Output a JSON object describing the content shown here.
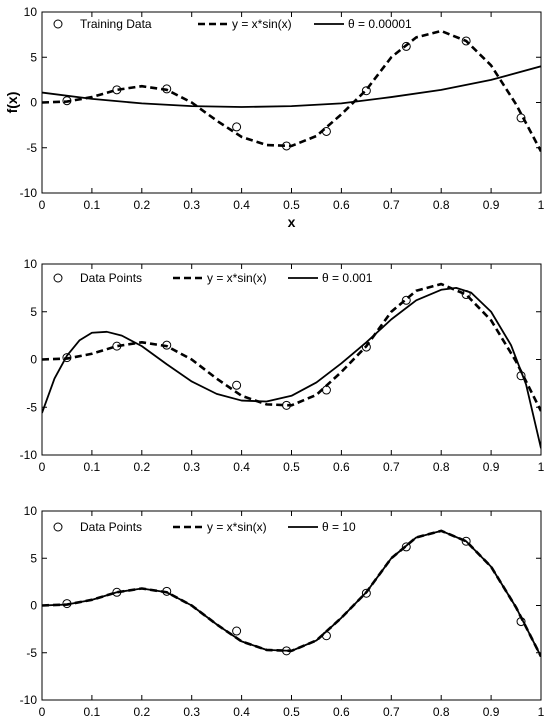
{
  "chart_data": [
    {
      "type": "line",
      "title": "",
      "xlabel": "x",
      "ylabel": "f(x)",
      "xlim": [
        0,
        1
      ],
      "ylim": [
        -10,
        10
      ],
      "xticks": [
        "0",
        "0.1",
        "0.2",
        "0.3",
        "0.4",
        "0.5",
        "0.6",
        "0.7",
        "0.8",
        "0.9",
        "1"
      ],
      "yticks": [
        "-10",
        "-5",
        "0",
        "5",
        "10"
      ],
      "legend_position": "top-left",
      "series": [
        {
          "name": "Training Data",
          "style": "markers",
          "x": [
            0.05,
            0.15,
            0.25,
            0.39,
            0.49,
            0.57,
            0.65,
            0.73,
            0.85,
            0.96
          ],
          "y": [
            0.2,
            1.4,
            1.5,
            -2.7,
            -4.8,
            -3.2,
            1.3,
            6.2,
            6.8,
            -1.7
          ]
        },
        {
          "name": "y = x*sin(x)",
          "style": "dashed",
          "x": [
            0,
            0.05,
            0.1,
            0.15,
            0.2,
            0.25,
            0.3,
            0.35,
            0.4,
            0.45,
            0.5,
            0.55,
            0.6,
            0.65,
            0.7,
            0.75,
            0.8,
            0.85,
            0.9,
            0.95,
            1
          ],
          "y": [
            0,
            0.1,
            0.6,
            1.4,
            1.8,
            1.4,
            0,
            -2.0,
            -3.8,
            -4.7,
            -4.8,
            -3.7,
            -1.3,
            1.4,
            5.0,
            7.2,
            7.9,
            6.8,
            4.1,
            -0.2,
            -5.4
          ]
        },
        {
          "name": "θ = 0.00001",
          "style": "solid",
          "x": [
            0,
            0.1,
            0.2,
            0.3,
            0.4,
            0.5,
            0.6,
            0.7,
            0.8,
            0.9,
            1
          ],
          "y": [
            1.1,
            0.4,
            -0.1,
            -0.4,
            -0.5,
            -0.4,
            -0.1,
            0.6,
            1.4,
            2.5,
            4.0
          ]
        }
      ]
    },
    {
      "type": "line",
      "title": "",
      "xlabel": "",
      "ylabel": "",
      "xlim": [
        0,
        1
      ],
      "ylim": [
        -10,
        10
      ],
      "xticks": [
        "0",
        "0.1",
        "0.2",
        "0.3",
        "0.4",
        "0.5",
        "0.6",
        "0.7",
        "0.8",
        "0.9",
        "1"
      ],
      "yticks": [
        "-10",
        "-5",
        "0",
        "5",
        "10"
      ],
      "legend_position": "top-left",
      "series": [
        {
          "name": "Data Points",
          "style": "markers",
          "x": [
            0.05,
            0.15,
            0.25,
            0.39,
            0.49,
            0.57,
            0.65,
            0.73,
            0.85,
            0.96
          ],
          "y": [
            0.2,
            1.4,
            1.5,
            -2.7,
            -4.8,
            -3.2,
            1.3,
            6.2,
            6.8,
            -1.7
          ]
        },
        {
          "name": "y = x*sin(x)",
          "style": "dashed",
          "x": [
            0,
            0.05,
            0.1,
            0.15,
            0.2,
            0.25,
            0.3,
            0.35,
            0.4,
            0.45,
            0.5,
            0.55,
            0.6,
            0.65,
            0.7,
            0.75,
            0.8,
            0.85,
            0.9,
            0.95,
            1
          ],
          "y": [
            0,
            0.1,
            0.6,
            1.4,
            1.8,
            1.4,
            0,
            -2.0,
            -3.8,
            -4.7,
            -4.8,
            -3.7,
            -1.3,
            1.4,
            5.0,
            7.2,
            7.9,
            6.8,
            4.1,
            -0.2,
            -5.4
          ]
        },
        {
          "name": "θ = 0.001",
          "style": "solid",
          "x": [
            0,
            0.025,
            0.05,
            0.075,
            0.1,
            0.13,
            0.16,
            0.2,
            0.25,
            0.3,
            0.35,
            0.4,
            0.45,
            0.5,
            0.55,
            0.6,
            0.65,
            0.7,
            0.75,
            0.8,
            0.83,
            0.86,
            0.9,
            0.94,
            0.97,
            1
          ],
          "y": [
            -5.6,
            -2.0,
            0.4,
            2.0,
            2.8,
            2.9,
            2.5,
            1.4,
            -0.5,
            -2.3,
            -3.6,
            -4.3,
            -4.4,
            -3.8,
            -2.4,
            -0.4,
            1.8,
            4.2,
            6.2,
            7.3,
            7.5,
            7.0,
            5.0,
            1.5,
            -2.6,
            -9.3
          ]
        }
      ]
    },
    {
      "type": "line",
      "title": "",
      "xlabel": "",
      "ylabel": "",
      "xlim": [
        0,
        1
      ],
      "ylim": [
        -10,
        10
      ],
      "xticks": [
        "0",
        "0.1",
        "0.2",
        "0.3",
        "0.4",
        "0.5",
        "0.6",
        "0.7",
        "0.8",
        "0.9",
        "1"
      ],
      "yticks": [
        "-10",
        "-5",
        "0",
        "5",
        "10"
      ],
      "legend_position": "top-left",
      "series": [
        {
          "name": "Data Points",
          "style": "markers",
          "x": [
            0.05,
            0.15,
            0.25,
            0.39,
            0.49,
            0.57,
            0.65,
            0.73,
            0.85,
            0.96
          ],
          "y": [
            0.2,
            1.4,
            1.5,
            -2.7,
            -4.8,
            -3.2,
            1.3,
            6.2,
            6.8,
            -1.7
          ]
        },
        {
          "name": "y = x*sin(x)",
          "style": "dashed",
          "x": [
            0,
            0.05,
            0.1,
            0.15,
            0.2,
            0.25,
            0.3,
            0.35,
            0.4,
            0.45,
            0.5,
            0.55,
            0.6,
            0.65,
            0.7,
            0.75,
            0.8,
            0.85,
            0.9,
            0.95,
            1
          ],
          "y": [
            0,
            0.1,
            0.6,
            1.4,
            1.8,
            1.4,
            0,
            -2.0,
            -3.8,
            -4.7,
            -4.8,
            -3.7,
            -1.3,
            1.4,
            5.0,
            7.2,
            7.9,
            6.8,
            4.1,
            -0.2,
            -5.4
          ]
        },
        {
          "name": "θ = 10",
          "style": "solid",
          "x": [
            0,
            0.05,
            0.1,
            0.15,
            0.2,
            0.25,
            0.3,
            0.35,
            0.4,
            0.45,
            0.5,
            0.55,
            0.6,
            0.65,
            0.7,
            0.75,
            0.8,
            0.85,
            0.9,
            0.95,
            1
          ],
          "y": [
            0,
            0.1,
            0.6,
            1.4,
            1.8,
            1.4,
            0,
            -2.0,
            -3.8,
            -4.7,
            -4.8,
            -3.7,
            -1.3,
            1.4,
            5.0,
            7.2,
            7.9,
            6.8,
            4.1,
            -0.2,
            -5.4
          ]
        }
      ]
    }
  ]
}
